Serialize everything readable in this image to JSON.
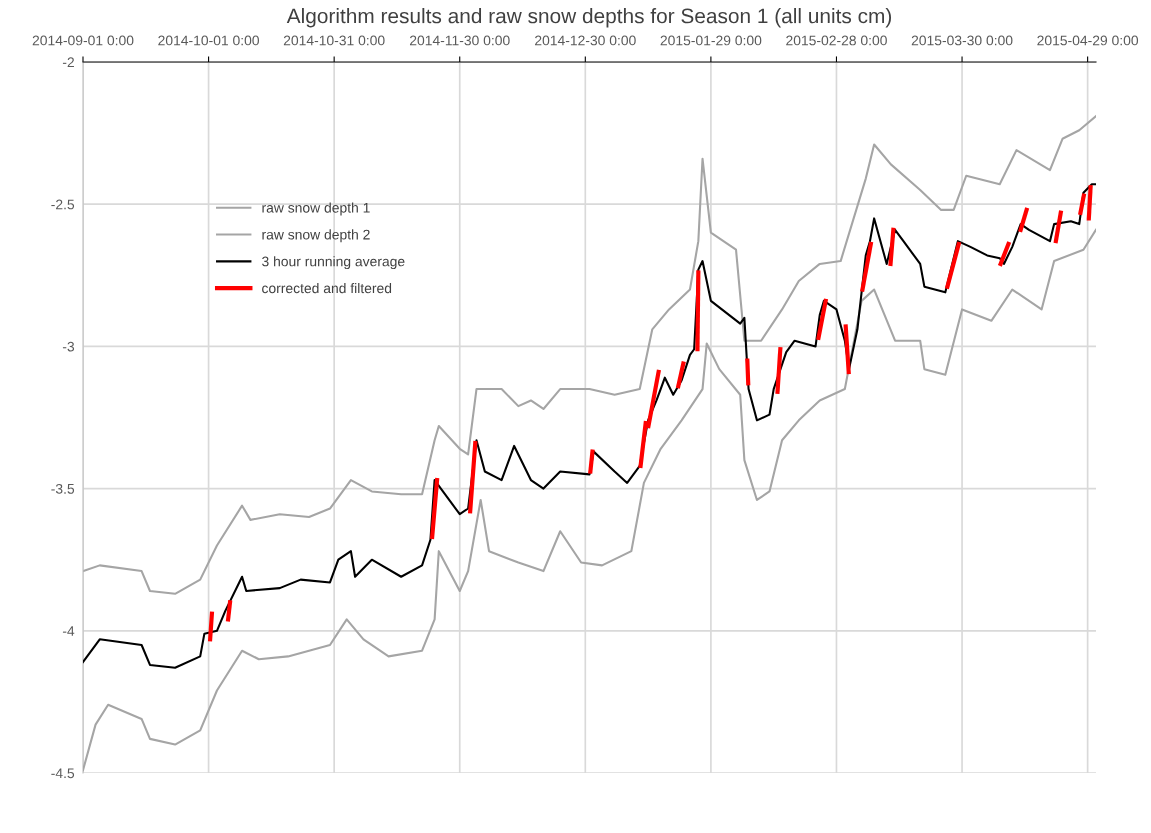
{
  "chart_data": {
    "type": "line",
    "title": "Algorithm results and raw snow depths for Season 1 (all units cm)",
    "xlim": [
      "2014-09-01",
      "2015-05-01"
    ],
    "xticks": [
      {
        "value": "2014-09-01",
        "label": "2014-09-01 0:00"
      },
      {
        "value": "2014-10-01",
        "label": "2014-10-01 0:00"
      },
      {
        "value": "2014-10-31",
        "label": "2014-10-31 0:00"
      },
      {
        "value": "2014-11-30",
        "label": "2014-11-30 0:00"
      },
      {
        "value": "2014-12-30",
        "label": "2014-12-30 0:00"
      },
      {
        "value": "2015-01-29",
        "label": "2015-01-29 0:00"
      },
      {
        "value": "2015-02-28",
        "label": "2015-02-28 0:00"
      },
      {
        "value": "2015-03-30",
        "label": "2015-03-30 0:00"
      },
      {
        "value": "2015-04-29",
        "label": "2015-04-29 0:00"
      }
    ],
    "ylim": [
      -4.5,
      -2
    ],
    "yticks": [
      -4.5,
      -4,
      -3.5,
      -3,
      -2.5,
      -2
    ],
    "grid": true,
    "legend": "top left",
    "series": [
      {
        "name": "raw snow depth 1",
        "color": "#a5a5a5",
        "x": [
          "2014-09-01",
          "2014-09-05",
          "2014-09-15",
          "2014-09-17",
          "2014-09-23",
          "2014-09-29",
          "2014-10-03",
          "2014-10-09",
          "2014-10-11",
          "2014-10-18",
          "2014-10-25",
          "2014-10-30",
          "2014-11-04",
          "2014-11-09",
          "2014-11-16",
          "2014-11-21",
          "2014-11-24",
          "2014-11-25",
          "2014-11-30",
          "2014-12-02",
          "2014-12-04",
          "2014-12-10",
          "2014-12-14",
          "2014-12-17",
          "2014-12-20",
          "2014-12-24",
          "2014-12-31",
          "2015-01-06",
          "2015-01-12",
          "2015-01-15",
          "2015-01-19",
          "2015-01-24",
          "2015-01-26",
          "2015-01-27",
          "2015-01-29",
          "2015-02-04",
          "2015-02-06",
          "2015-02-10",
          "2015-02-15",
          "2015-02-19",
          "2015-02-24",
          "2015-03-01",
          "2015-03-07",
          "2015-03-09",
          "2015-03-13",
          "2015-03-20",
          "2015-03-25",
          "2015-03-28",
          "2015-03-31",
          "2015-04-08",
          "2015-04-12",
          "2015-04-20",
          "2015-04-23",
          "2015-04-27",
          "2015-05-01"
        ],
        "values": [
          -3.79,
          -3.77,
          -3.79,
          -3.86,
          -3.87,
          -3.82,
          -3.7,
          -3.56,
          -3.61,
          -3.59,
          -3.6,
          -3.57,
          -3.47,
          -3.51,
          -3.52,
          -3.52,
          -3.33,
          -3.28,
          -3.36,
          -3.38,
          -3.15,
          -3.15,
          -3.21,
          -3.19,
          -3.22,
          -3.15,
          -3.15,
          -3.17,
          -3.15,
          -2.94,
          -2.87,
          -2.8,
          -2.63,
          -2.34,
          -2.6,
          -2.66,
          -2.98,
          -2.98,
          -2.87,
          -2.77,
          -2.71,
          -2.7,
          -2.41,
          -2.29,
          -2.36,
          -2.45,
          -2.52,
          -2.52,
          -2.4,
          -2.43,
          -2.31,
          -2.38,
          -2.27,
          -2.24,
          -2.19
        ]
      },
      {
        "name": "raw snow depth 2",
        "color": "#a5a5a5",
        "x": [
          "2014-09-01",
          "2014-09-04",
          "2014-09-07",
          "2014-09-15",
          "2014-09-17",
          "2014-09-23",
          "2014-09-29",
          "2014-10-03",
          "2014-10-09",
          "2014-10-13",
          "2014-10-20",
          "2014-10-30",
          "2014-11-03",
          "2014-11-07",
          "2014-11-13",
          "2014-11-21",
          "2014-11-24",
          "2014-11-25",
          "2014-11-30",
          "2014-12-02",
          "2014-12-05",
          "2014-12-07",
          "2014-12-14",
          "2014-12-20",
          "2014-12-24",
          "2014-12-29",
          "2015-01-03",
          "2015-01-10",
          "2015-01-13",
          "2015-01-17",
          "2015-01-22",
          "2015-01-27",
          "2015-01-28",
          "2015-01-31",
          "2015-02-05",
          "2015-02-06",
          "2015-02-09",
          "2015-02-12",
          "2015-02-15",
          "2015-02-19",
          "2015-02-24",
          "2015-03-02",
          "2015-03-06",
          "2015-03-09",
          "2015-03-14",
          "2015-03-20",
          "2015-03-21",
          "2015-03-26",
          "2015-03-30",
          "2015-04-06",
          "2015-04-11",
          "2015-04-18",
          "2015-04-21",
          "2015-04-28",
          "2015-05-01"
        ],
        "values": [
          -4.49,
          -4.33,
          -4.26,
          -4.31,
          -4.38,
          -4.4,
          -4.35,
          -4.21,
          -4.07,
          -4.1,
          -4.09,
          -4.05,
          -3.96,
          -4.03,
          -4.09,
          -4.07,
          -3.96,
          -3.72,
          -3.86,
          -3.79,
          -3.54,
          -3.72,
          -3.76,
          -3.79,
          -3.65,
          -3.76,
          -3.77,
          -3.72,
          -3.48,
          -3.36,
          -3.26,
          -3.15,
          -2.99,
          -3.08,
          -3.17,
          -3.4,
          -3.54,
          -3.51,
          -3.33,
          -3.26,
          -3.19,
          -3.15,
          -2.84,
          -2.8,
          -2.98,
          -2.98,
          -3.08,
          -3.1,
          -2.87,
          -2.91,
          -2.8,
          -2.87,
          -2.7,
          -2.66,
          -2.59
        ]
      },
      {
        "name": "3 hour running average",
        "color": "#000000",
        "x": [
          "2014-09-01",
          "2014-09-05",
          "2014-09-15",
          "2014-09-17",
          "2014-09-23",
          "2014-09-29",
          "2014-09-30",
          "2014-10-03",
          "2014-10-05",
          "2014-10-09",
          "2014-10-10",
          "2014-10-18",
          "2014-10-23",
          "2014-10-30",
          "2014-11-01",
          "2014-11-04",
          "2014-11-05",
          "2014-11-09",
          "2014-11-16",
          "2014-11-21",
          "2014-11-23",
          "2014-11-24",
          "2014-11-30",
          "2014-12-02",
          "2014-12-04",
          "2014-12-06",
          "2014-12-10",
          "2014-12-13",
          "2014-12-17",
          "2014-12-20",
          "2014-12-24",
          "2014-12-31",
          "2015-01-01",
          "2015-01-06",
          "2015-01-09",
          "2015-01-12",
          "2015-01-14",
          "2015-01-16",
          "2015-01-17",
          "2015-01-18",
          "2015-01-19",
          "2015-01-20",
          "2015-01-22",
          "2015-01-24",
          "2015-01-25",
          "2015-01-26",
          "2015-01-27",
          "2015-01-29",
          "2015-02-05",
          "2015-02-06",
          "2015-02-07",
          "2015-02-09",
          "2015-02-12",
          "2015-02-13",
          "2015-02-16",
          "2015-02-18",
          "2015-02-23",
          "2015-02-24",
          "2015-02-25",
          "2015-02-28",
          "2015-03-02",
          "2015-03-03",
          "2015-03-05",
          "2015-03-07",
          "2015-03-08",
          "2015-03-09",
          "2015-03-12",
          "2015-03-14",
          "2015-03-16",
          "2015-03-20",
          "2015-03-21",
          "2015-03-26",
          "2015-03-27",
          "2015-03-29",
          "2015-04-01",
          "2015-04-05",
          "2015-04-08",
          "2015-04-09",
          "2015-04-11",
          "2015-04-13",
          "2015-04-15",
          "2015-04-20",
          "2015-04-21",
          "2015-04-25",
          "2015-04-27",
          "2015-04-28",
          "2015-04-30",
          "2015-05-01"
        ],
        "values": [
          -4.11,
          -4.03,
          -4.05,
          -4.12,
          -4.13,
          -4.09,
          -4.01,
          -4.0,
          -3.93,
          -3.81,
          -3.86,
          -3.85,
          -3.82,
          -3.83,
          -3.75,
          -3.72,
          -3.81,
          -3.75,
          -3.81,
          -3.77,
          -3.68,
          -3.47,
          -3.59,
          -3.57,
          -3.33,
          -3.44,
          -3.47,
          -3.35,
          -3.47,
          -3.5,
          -3.44,
          -3.45,
          -3.37,
          -3.44,
          -3.48,
          -3.42,
          -3.26,
          -3.19,
          -3.15,
          -3.11,
          -3.14,
          -3.17,
          -3.12,
          -3.03,
          -3.01,
          -2.73,
          -2.7,
          -2.84,
          -2.92,
          -2.9,
          -3.15,
          -3.26,
          -3.24,
          -3.15,
          -3.02,
          -2.98,
          -3.0,
          -2.89,
          -2.84,
          -2.87,
          -2.98,
          -3.08,
          -2.94,
          -2.68,
          -2.63,
          -2.55,
          -2.71,
          -2.59,
          -2.63,
          -2.71,
          -2.79,
          -2.81,
          -2.75,
          -2.63,
          -2.65,
          -2.68,
          -2.69,
          -2.71,
          -2.65,
          -2.57,
          -2.59,
          -2.63,
          -2.57,
          -2.56,
          -2.57,
          -2.46,
          -2.43,
          -2.43
        ]
      },
      {
        "name": "corrected and filtered",
        "color": "#ff0000",
        "x": [
          "2014-10-01T09:00",
          "2014-10-01T19:00"
        ],
        "values": [
          -4.03,
          -3.94
        ]
      },
      {
        "color": "#ff0000",
        "x": [
          "2014-10-05T16:00",
          "2014-10-06T03:00"
        ],
        "values": [
          -3.96,
          -3.9
        ]
      },
      {
        "color": "#ff0000",
        "x": [
          "2014-11-23T10:00",
          "2014-11-24T14:00"
        ],
        "values": [
          -3.67,
          -3.47
        ]
      },
      {
        "color": "#ff0000",
        "x": [
          "2014-12-02T12:00",
          "2014-12-03T17:00"
        ],
        "values": [
          -3.58,
          -3.34
        ]
      },
      {
        "color": "#ff0000",
        "x": [
          "2014-12-31T05:00",
          "2014-12-31T17:00"
        ],
        "values": [
          -3.44,
          -3.37
        ]
      },
      {
        "color": "#ff0000",
        "x": [
          "2015-01-12T05:00",
          "2015-01-13T10:00"
        ],
        "values": [
          -3.42,
          -3.27
        ]
      },
      {
        "color": "#ff0000",
        "x": [
          "2015-01-14T02:00",
          "2015-01-16T12:00"
        ],
        "values": [
          -3.28,
          -3.09
        ]
      },
      {
        "color": "#ff0000",
        "x": [
          "2015-01-21T05:00",
          "2015-01-22T10:00"
        ],
        "values": [
          -3.14,
          -3.06
        ]
      },
      {
        "color": "#ff0000",
        "x": [
          "2015-01-25T19:00",
          "2015-01-26T00:00"
        ],
        "values": [
          -3.01,
          -2.74
        ]
      },
      {
        "color": "#ff0000",
        "x": [
          "2015-02-06T17:00",
          "2015-02-06T22:00"
        ],
        "values": [
          -3.05,
          -3.13
        ]
      },
      {
        "color": "#ff0000",
        "x": [
          "2015-02-13T22:00",
          "2015-02-14T14:00"
        ],
        "values": [
          -3.16,
          -3.01
        ]
      },
      {
        "color": "#ff0000",
        "x": [
          "2015-02-23T17:00",
          "2015-02-25T10:00"
        ],
        "values": [
          -2.97,
          -2.84
        ]
      },
      {
        "color": "#ff0000",
        "x": [
          "2015-03-02T05:00",
          "2015-03-02T22:00"
        ],
        "values": [
          -2.93,
          -3.09
        ]
      },
      {
        "color": "#ff0000",
        "x": [
          "2015-03-06T05:00",
          "2015-03-08T05:00"
        ],
        "values": [
          -2.8,
          -2.64
        ]
      },
      {
        "color": "#ff0000",
        "x": [
          "2015-03-12T22:00",
          "2015-03-13T14:00"
        ],
        "values": [
          -2.71,
          -2.59
        ]
      },
      {
        "color": "#ff0000",
        "x": [
          "2015-03-26T12:00",
          "2015-03-29T05:00"
        ],
        "values": [
          -2.79,
          -2.64
        ]
      },
      {
        "color": "#ff0000",
        "x": [
          "2015-04-08T05:00",
          "2015-04-10T02:00"
        ],
        "values": [
          -2.71,
          -2.64
        ]
      },
      {
        "color": "#ff0000",
        "x": [
          "2015-04-13T00:00",
          "2015-04-14T10:00"
        ],
        "values": [
          -2.59,
          -2.52
        ]
      },
      {
        "color": "#ff0000",
        "x": [
          "2015-04-21T10:00",
          "2015-04-22T14:00"
        ],
        "values": [
          -2.63,
          -2.53
        ]
      },
      {
        "color": "#ff0000",
        "x": [
          "2015-04-27T07:00",
          "2015-04-28T02:00"
        ],
        "values": [
          -2.53,
          -2.47
        ]
      },
      {
        "color": "#ff0000",
        "x": [
          "2015-04-29T07:00",
          "2015-04-29T17:00"
        ],
        "values": [
          -2.55,
          -2.44
        ]
      }
    ]
  }
}
